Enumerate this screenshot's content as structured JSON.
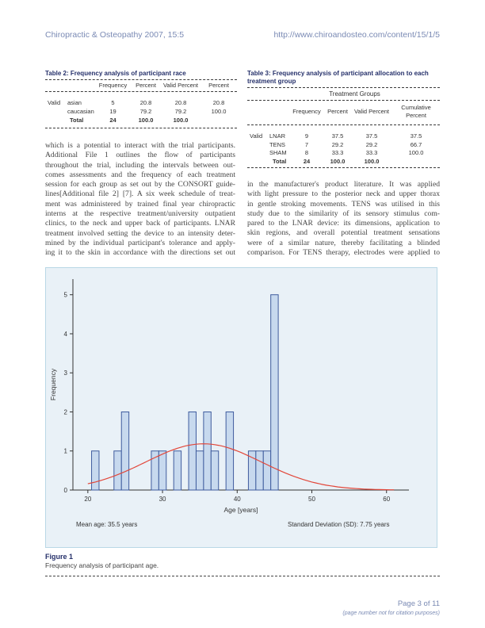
{
  "header": {
    "left": "Chiropractic & Osteopathy 2007, 15:5",
    "right": "http://www.chiroandosteo.com/content/15/1/5"
  },
  "table2": {
    "title": "Table 2: Frequency analysis of participant race",
    "columns": [
      "Frequency",
      "Percent",
      "Valid Percent",
      "Percent"
    ],
    "group_label": "Valid",
    "rows": [
      {
        "label": "asian",
        "frequency": "5",
        "percent": "20.8",
        "valid_percent": "20.8",
        "cumulative": "20.8"
      },
      {
        "label": "caucasian",
        "frequency": "19",
        "percent": "79.2",
        "valid_percent": "79.2",
        "cumulative": "100.0"
      },
      {
        "label": "Total",
        "frequency": "24",
        "percent": "100.0",
        "valid_percent": "100.0",
        "cumulative": ""
      }
    ]
  },
  "table3": {
    "title_line1": "Table 3: Frequency analysis of participant allocation to each",
    "title_line2": "treatment group",
    "group_header": "Treatment Groups",
    "columns": [
      "Frequency",
      "Percent",
      "Valid Percent",
      "Cumulative",
      "Percent"
    ],
    "group_label": "Valid",
    "rows": [
      {
        "label": "LNAR",
        "frequency": "9",
        "percent": "37.5",
        "valid_percent": "37.5",
        "cumulative": "37.5"
      },
      {
        "label": "TENS",
        "frequency": "7",
        "percent": "29.2",
        "valid_percent": "29.2",
        "cumulative": "66.7"
      },
      {
        "label": "SHAM",
        "frequency": "8",
        "percent": "33.3",
        "valid_percent": "33.3",
        "cumulative": "100.0"
      },
      {
        "label": "Total",
        "frequency": "24",
        "percent": "100.0",
        "valid_percent": "100.0",
        "cumulative": ""
      }
    ]
  },
  "left_column_lines": [
    "which is a potential to interact with the trial participants.",
    "Additional File 1 outlines the flow of participants",
    "throughout the trial, including the intervals between out-",
    "comes assessments and the frequency of each treatment",
    "session for each group as set out by the CONSORT guide-",
    "lines[Additional file 2] [7]. A six week schedule of treat-",
    "ment was administered by trained final year chiropractic",
    "interns at the respective treatment/university outpatient",
    "clinics, to the neck and upper back of participants. LNAR",
    "treatment involved setting the device to an intensity deter-",
    "mined by the individual participant's tolerance and apply-",
    "ing it to the skin in accordance with the directions set out"
  ],
  "right_column_lines": [
    "in the manufacturer's product literature. It was applied",
    "with light pressure to the posterior neck and upper thorax",
    "in gentle stroking movements. TENS was utilised in this",
    "study due to the similarity of its sensory stimulus com-",
    "pared to the LNAR device: its dimensions, application to",
    "skin regions, and overall potential treatment sensations",
    "were of a similar nature, thereby facilitating a blinded",
    "comparison. For TENS therapy, electrodes were applied to"
  ],
  "chart_data": {
    "type": "bar",
    "title": "",
    "xlabel": "Age [years]",
    "ylabel": "Frequency",
    "x_ticks": [
      20,
      30,
      40,
      50,
      60
    ],
    "y_ticks": [
      0,
      1,
      2,
      3,
      4,
      5
    ],
    "xlim": [
      18,
      63
    ],
    "ylim": [
      0,
      5.4
    ],
    "bins": [
      {
        "age": 21,
        "count": 1
      },
      {
        "age": 24,
        "count": 1
      },
      {
        "age": 25,
        "count": 2
      },
      {
        "age": 29,
        "count": 1
      },
      {
        "age": 30,
        "count": 1
      },
      {
        "age": 32,
        "count": 1
      },
      {
        "age": 34,
        "count": 2
      },
      {
        "age": 35,
        "count": 1
      },
      {
        "age": 36,
        "count": 2
      },
      {
        "age": 37,
        "count": 1
      },
      {
        "age": 39,
        "count": 2
      },
      {
        "age": 42,
        "count": 1
      },
      {
        "age": 43,
        "count": 1
      },
      {
        "age": 44,
        "count": 1
      },
      {
        "age": 45,
        "count": 5
      }
    ],
    "normal_curve": {
      "mean": 35.5,
      "std_dev": 7.75
    },
    "stats_left": "Mean age: 35.5 years",
    "stats_right": "Standard Deviation (SD): 7.75 years",
    "colors": {
      "bar": "#c7d9ee",
      "bar_edge": "#3f5c9e",
      "curve": "#e2473a",
      "background": "#e9f1f7"
    }
  },
  "figure": {
    "label": "Figure 1",
    "caption": "Frequency analysis of participant age."
  },
  "footer": {
    "page": "Page 3 of 11",
    "note": "(page number not for citation purposes)"
  }
}
